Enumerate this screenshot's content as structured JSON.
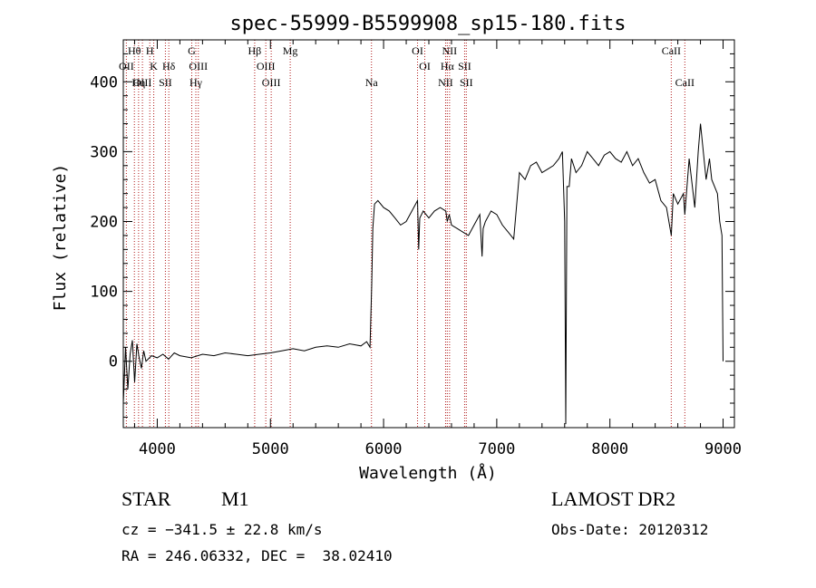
{
  "chart_data": {
    "type": "line",
    "title": "spec-55999-B5599908_sp15-180.fits",
    "xlabel": "Wavelength (Å)",
    "ylabel": "Flux (relative)",
    "xlim": [
      3700,
      9100
    ],
    "ylim": [
      -95,
      460
    ],
    "xticks": [
      4000,
      5000,
      6000,
      7000,
      8000,
      9000
    ],
    "yticks": [
      0,
      100,
      200,
      300,
      400
    ],
    "grid": false,
    "series": [
      {
        "x": [
          3700,
          3720,
          3740,
          3760,
          3780,
          3800,
          3820,
          3840,
          3860,
          3880,
          3900,
          3950,
          4000,
          4050,
          4100,
          4150,
          4200,
          4300,
          4400,
          4500,
          4600,
          4700,
          4800,
          4900,
          5000,
          5100,
          5200,
          5300,
          5400,
          5500,
          5600,
          5700,
          5800,
          5850,
          5880,
          5895,
          5905,
          5920,
          5950,
          6000,
          6050,
          6100,
          6150,
          6200,
          6250,
          6300,
          6310,
          6320,
          6350,
          6400,
          6450,
          6500,
          6550,
          6563,
          6580,
          6600,
          6650,
          6700,
          6750,
          6800,
          6850,
          6870,
          6880,
          6900,
          6950,
          7000,
          7050,
          7100,
          7150,
          7200,
          7250,
          7300,
          7350,
          7400,
          7450,
          7500,
          7550,
          7580,
          7600,
          7610,
          7620,
          7640,
          7660,
          7700,
          7750,
          7800,
          7850,
          7900,
          7950,
          8000,
          8050,
          8100,
          8150,
          8200,
          8250,
          8300,
          8350,
          8400,
          8450,
          8500,
          8542,
          8560,
          8600,
          8650,
          8662,
          8700,
          8750,
          8780,
          8800,
          8850,
          8880,
          8900,
          8950,
          8970,
          8990,
          9000
        ],
        "y": [
          -60,
          20,
          -40,
          10,
          30,
          -30,
          25,
          5,
          -10,
          15,
          0,
          8,
          5,
          10,
          3,
          12,
          8,
          5,
          10,
          8,
          12,
          10,
          8,
          10,
          12,
          15,
          18,
          15,
          20,
          22,
          20,
          25,
          22,
          28,
          20,
          110,
          190,
          225,
          230,
          220,
          215,
          205,
          195,
          200,
          215,
          230,
          160,
          205,
          215,
          205,
          215,
          220,
          215,
          200,
          210,
          195,
          190,
          185,
          180,
          195,
          210,
          150,
          190,
          200,
          215,
          210,
          195,
          185,
          175,
          270,
          260,
          280,
          285,
          270,
          275,
          280,
          290,
          300,
          200,
          -90,
          250,
          250,
          290,
          270,
          280,
          300,
          290,
          280,
          295,
          300,
          290,
          285,
          300,
          280,
          290,
          270,
          255,
          260,
          230,
          220,
          180,
          240,
          225,
          240,
          210,
          290,
          220,
          300,
          340,
          260,
          290,
          260,
          240,
          200,
          180,
          0
        ]
      }
    ],
    "lines": [
      {
        "name": "Hθ",
        "x": 3798
      },
      {
        "name": "Hη",
        "x": 3835
      },
      {
        "name": "OII",
        "x": 3727
      },
      {
        "name": "OIII",
        "x": 3869
      },
      {
        "name": "H",
        "x": 3934
      },
      {
        "name": "K",
        "x": 3969
      },
      {
        "name": "Hδ",
        "x": 4102
      },
      {
        "name": "SII",
        "x": 4072
      },
      {
        "name": "G",
        "x": 4305
      },
      {
        "name": "OIII",
        "x": 4363
      },
      {
        "name": "Hγ",
        "x": 4341
      },
      {
        "name": "Hβ",
        "x": 4861
      },
      {
        "name": "OIII",
        "x": 4959
      },
      {
        "name": "OIII",
        "x": 5007
      },
      {
        "name": "Mg",
        "x": 5175
      },
      {
        "name": "Na",
        "x": 5893
      },
      {
        "name": "OI",
        "x": 6300
      },
      {
        "name": "OI",
        "x": 6364
      },
      {
        "name": "NII",
        "x": 6548
      },
      {
        "name": "Hα",
        "x": 6563
      },
      {
        "name": "NII",
        "x": 6583
      },
      {
        "name": "SII",
        "x": 6716
      },
      {
        "name": "SII",
        "x": 6731
      },
      {
        "name": "CaII",
        "x": 8542
      },
      {
        "name": "CaII",
        "x": 8662
      }
    ],
    "line_labels": [
      {
        "text": "Hθ",
        "x": 3798,
        "row": 1
      },
      {
        "text": "H",
        "x": 3934,
        "row": 1
      },
      {
        "text": "G",
        "x": 4305,
        "row": 1
      },
      {
        "text": "Hβ",
        "x": 4861,
        "row": 1
      },
      {
        "text": "Mg",
        "x": 5175,
        "row": 1
      },
      {
        "text": "OI",
        "x": 6300,
        "row": 1
      },
      {
        "text": "NII",
        "x": 6583,
        "row": 1
      },
      {
        "text": "CaII",
        "x": 8542,
        "row": 1
      },
      {
        "text": "OII",
        "x": 3727,
        "row": 2
      },
      {
        "text": "K",
        "x": 3969,
        "row": 2
      },
      {
        "text": "Hδ",
        "x": 4102,
        "row": 2
      },
      {
        "text": "OIII",
        "x": 4363,
        "row": 2
      },
      {
        "text": "OIII",
        "x": 4959,
        "row": 2
      },
      {
        "text": "OI",
        "x": 6364,
        "row": 2
      },
      {
        "text": "Hα",
        "x": 6563,
        "row": 2
      },
      {
        "text": "SII",
        "x": 6716,
        "row": 2
      },
      {
        "text": "OIII",
        "x": 3869,
        "row": 3
      },
      {
        "text": "Hη",
        "x": 3835,
        "row": 3
      },
      {
        "text": "SII",
        "x": 4072,
        "row": 3
      },
      {
        "text": "Hγ",
        "x": 4341,
        "row": 3
      },
      {
        "text": "OIII",
        "x": 5007,
        "row": 3
      },
      {
        "text": "Na",
        "x": 5893,
        "row": 3
      },
      {
        "text": "NII",
        "x": 6548,
        "row": 3
      },
      {
        "text": "SII",
        "x": 6731,
        "row": 3
      },
      {
        "text": "CaII",
        "x": 8662,
        "row": 3
      }
    ],
    "colors": {
      "spectrum": "#000000",
      "lines": "#b01818",
      "axes": "#000000"
    }
  },
  "info": {
    "class": "STAR",
    "subclass": "M1",
    "survey": "LAMOST DR2",
    "cz": "cz = −341.5 ± 22.8 km/s",
    "obs_date": "Obs-Date: 20120312",
    "coords": "RA = 246.06332, DEC =  38.02410"
  }
}
